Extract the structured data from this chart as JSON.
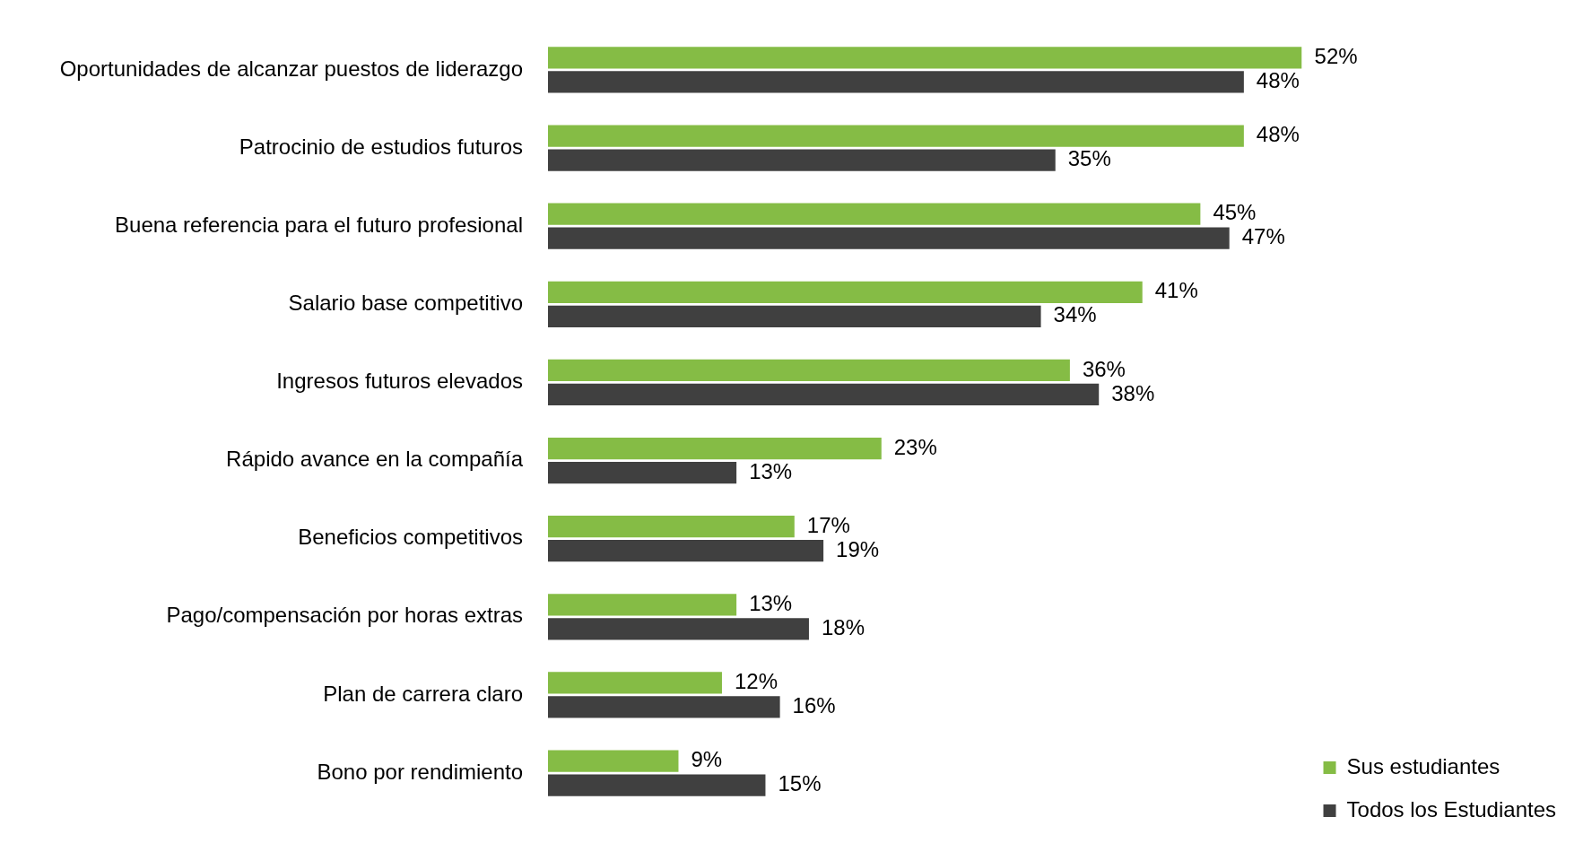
{
  "chart_data": {
    "type": "bar",
    "orientation": "horizontal",
    "legend": "bottom right",
    "categories": [
      "Oportunidades de alcanzar puestos de liderazgo",
      "Patrocinio de estudios futuros",
      "Buena referencia para el futuro profesional",
      "Salario base competitivo",
      "Ingresos futuros elevados",
      "Rápido avance en la compañía",
      "Beneficios competitivos",
      "Pago/compensación por horas extras",
      "Plan de carrera claro",
      "Bono por rendimiento"
    ],
    "series": [
      {
        "name": "Sus estudiantes",
        "color": "#85bc45",
        "values": [
          52,
          48,
          45,
          41,
          36,
          23,
          17,
          13,
          12,
          9
        ],
        "value_labels": [
          "52%",
          "48%",
          "45%",
          "41%",
          "36%",
          "23%",
          "17%",
          "13%",
          "12%",
          "9%"
        ]
      },
      {
        "name": "Todos los Estudiantes",
        "color": "#404040",
        "values": [
          48,
          35,
          47,
          34,
          38,
          13,
          19,
          18,
          16,
          15
        ],
        "value_labels": [
          "48%",
          "35%",
          "47%",
          "34%",
          "38%",
          "13%",
          "19%",
          "18%",
          "16%",
          "15%"
        ]
      }
    ]
  }
}
